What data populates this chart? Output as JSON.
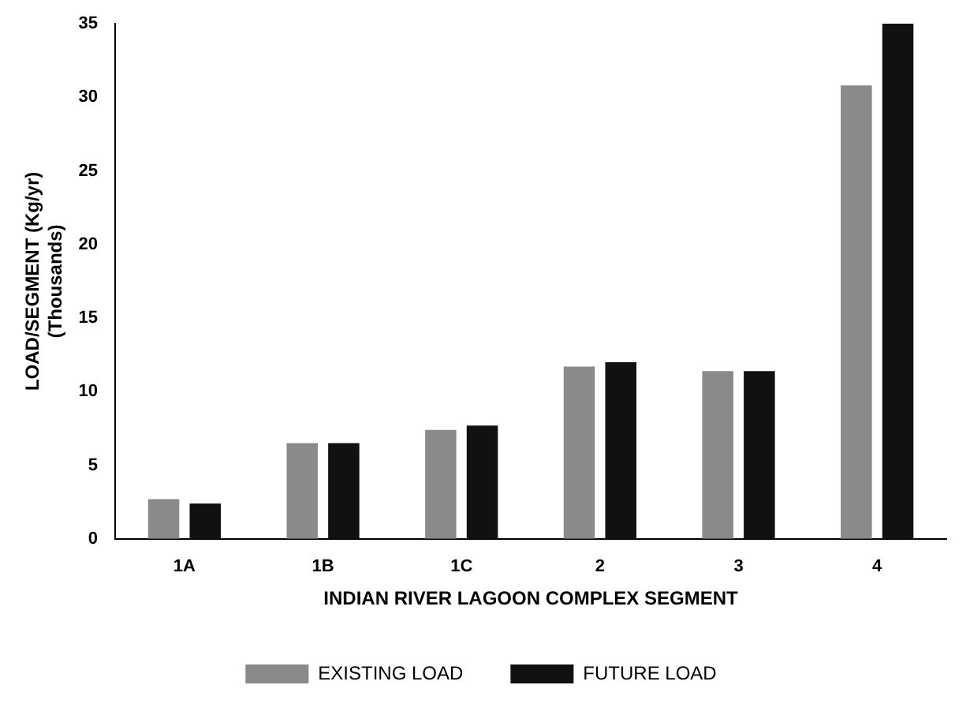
{
  "chart_data": {
    "type": "bar",
    "xlabel": "INDIAN RIVER LAGOON COMPLEX SEGMENT",
    "ylabel": "LOAD/SEGMENT (Kg/yr)\n(Thousands)",
    "categories": [
      "1A",
      "1B",
      "1C",
      "2",
      "3",
      "4"
    ],
    "series": [
      {
        "name": "EXISTING LOAD",
        "color": "#8a8a8a",
        "values": [
          2.7,
          6.5,
          7.4,
          11.7,
          11.4,
          30.8
        ]
      },
      {
        "name": "FUTURE LOAD",
        "color": "#111111",
        "values": [
          2.4,
          6.5,
          7.7,
          12.0,
          11.4,
          35.0
        ]
      }
    ],
    "ylim": [
      0,
      35
    ],
    "yticks": [
      0,
      5,
      10,
      15,
      20,
      25,
      30,
      35
    ],
    "grid": false,
    "legend": "bottom"
  }
}
